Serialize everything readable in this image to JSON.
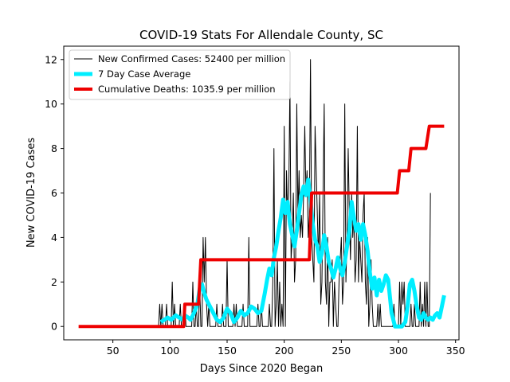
{
  "chart_data": {
    "type": "line",
    "title": "COVID-19 Stats For Allendale County, SC",
    "xlabel": "Days Since 2020 Began",
    "ylabel": "New COVID-19 Cases",
    "xlim": [
      7,
      353
    ],
    "ylim": [
      -0.6,
      12.6
    ],
    "x_ticks": [
      50,
      100,
      150,
      200,
      250,
      300,
      350
    ],
    "y_ticks": [
      0,
      2,
      4,
      6,
      8,
      10,
      12
    ],
    "grid": false,
    "legend_position": "top-left",
    "series": [
      {
        "name": "New Confirmed Cases: 52400 per million",
        "color": "#000000",
        "width": 1,
        "x_start": 90,
        "values": [
          0,
          1,
          0,
          1,
          0,
          0,
          0,
          1,
          0,
          0,
          0,
          0,
          2,
          0,
          1,
          0,
          0,
          0,
          0,
          1,
          0,
          0,
          0,
          1,
          0,
          0,
          0,
          0,
          0,
          0,
          2,
          0,
          0,
          1,
          0,
          0,
          2,
          0,
          0,
          4,
          2,
          4,
          1,
          0,
          1,
          0,
          0,
          0,
          0,
          0,
          0,
          1,
          0,
          0,
          0,
          0,
          1,
          0,
          0,
          0,
          3,
          0,
          0,
          0,
          0,
          0,
          1,
          0,
          1,
          0,
          0,
          0,
          0,
          0,
          1,
          0,
          0,
          0,
          0,
          4,
          0,
          0,
          0,
          0,
          0,
          0,
          0,
          1,
          0,
          0,
          1,
          0,
          0,
          0,
          0,
          0,
          0,
          1,
          0,
          0,
          2,
          8,
          0,
          1,
          3,
          0,
          2,
          0,
          1,
          0,
          9,
          0,
          7,
          5,
          6,
          11,
          3,
          4,
          6,
          2,
          3,
          10,
          5,
          7,
          4,
          5,
          4,
          6,
          9,
          6,
          7,
          4,
          5,
          12,
          4,
          3,
          2,
          9,
          7,
          5,
          3,
          6,
          1,
          2,
          6,
          10,
          2,
          1,
          4,
          0,
          2,
          2,
          3,
          0,
          2,
          1,
          0,
          0,
          2,
          3,
          4,
          1,
          2,
          10,
          2,
          4,
          8,
          5,
          3,
          6,
          4,
          5,
          2,
          3,
          9,
          2,
          4,
          3,
          2,
          5,
          6,
          2,
          1,
          4,
          0,
          1,
          3,
          1,
          0,
          0,
          0,
          0,
          1,
          0,
          1,
          0,
          0,
          0,
          0,
          0,
          0,
          0,
          0,
          0,
          0,
          0,
          1,
          0,
          0,
          0,
          0,
          2,
          0,
          2,
          1,
          2,
          0,
          0,
          0,
          0,
          0,
          1,
          0,
          0,
          1,
          0,
          0,
          0,
          0,
          2,
          0,
          1,
          0,
          2,
          0,
          2,
          0,
          0,
          6
        ]
      },
      {
        "name": "7 Day Case Average",
        "color": "#00eeff",
        "width": 5,
        "x": [
          92,
          95,
          98,
          101,
          103,
          105,
          108,
          111,
          113,
          116,
          118,
          121,
          124,
          126,
          128,
          130,
          132,
          135,
          138,
          141,
          144,
          147,
          150,
          153,
          156,
          159,
          162,
          165,
          168,
          171,
          174,
          177,
          180,
          183,
          185,
          187,
          189,
          191,
          193,
          195,
          197,
          199,
          201,
          203,
          205,
          207,
          209,
          211,
          213,
          215,
          217,
          219,
          221,
          223,
          225,
          227,
          229,
          231,
          233,
          235,
          237,
          239,
          241,
          243,
          245,
          247,
          249,
          251,
          253,
          255,
          257,
          259,
          261,
          263,
          265,
          267,
          269,
          271,
          273,
          275,
          277,
          279,
          281,
          283,
          285,
          287,
          289,
          291,
          294,
          297,
          300,
          303,
          306,
          308,
          310,
          312,
          314,
          316,
          318,
          320,
          322,
          324,
          326,
          328,
          330,
          332,
          334,
          336,
          338,
          340
        ],
        "y": [
          0.2,
          0.3,
          0.4,
          0.3,
          0.4,
          0.5,
          0.4,
          0.3,
          0.5,
          0.4,
          0.3,
          0.6,
          1.0,
          1.7,
          1.9,
          1.5,
          1.2,
          0.9,
          0.6,
          0.3,
          0.2,
          0.4,
          0.8,
          0.6,
          0.2,
          0.4,
          0.7,
          0.5,
          0.6,
          0.9,
          0.8,
          0.6,
          0.7,
          1.5,
          2.1,
          2.6,
          2.3,
          3.1,
          3.6,
          4.3,
          4.9,
          5.7,
          5.1,
          5.6,
          4.6,
          4.1,
          3.6,
          4.3,
          5.1,
          5.9,
          6.3,
          5.9,
          6.6,
          5.7,
          4.6,
          3.9,
          3.6,
          2.9,
          3.3,
          4.1,
          3.6,
          2.9,
          2.6,
          2.2,
          2.6,
          3.1,
          2.6,
          2.3,
          2.9,
          3.6,
          4.3,
          5.6,
          4.9,
          4.3,
          4.6,
          3.9,
          4.6,
          4.1,
          3.4,
          2.4,
          1.7,
          2.2,
          1.4,
          2.1,
          1.6,
          1.9,
          2.3,
          2.1,
          0.6,
          0.0,
          0.0,
          0.0,
          0.2,
          0.9,
          1.9,
          2.1,
          1.6,
          0.9,
          0.4,
          0.3,
          0.6,
          0.4,
          0.3,
          0.4,
          0.3,
          0.5,
          0.6,
          0.4,
          0.9,
          1.4
        ]
      },
      {
        "name": "Cumulative Deaths: 1035.9 per million",
        "color": "#ee0000",
        "width": 4,
        "x": [
          20,
          112,
          113,
          125,
          127,
          222,
          224,
          299,
          301,
          309,
          311,
          324,
          327,
          340
        ],
        "y": [
          0,
          0,
          1,
          1,
          3,
          3,
          6,
          6,
          7,
          7,
          8,
          8,
          9,
          9
        ]
      }
    ]
  }
}
